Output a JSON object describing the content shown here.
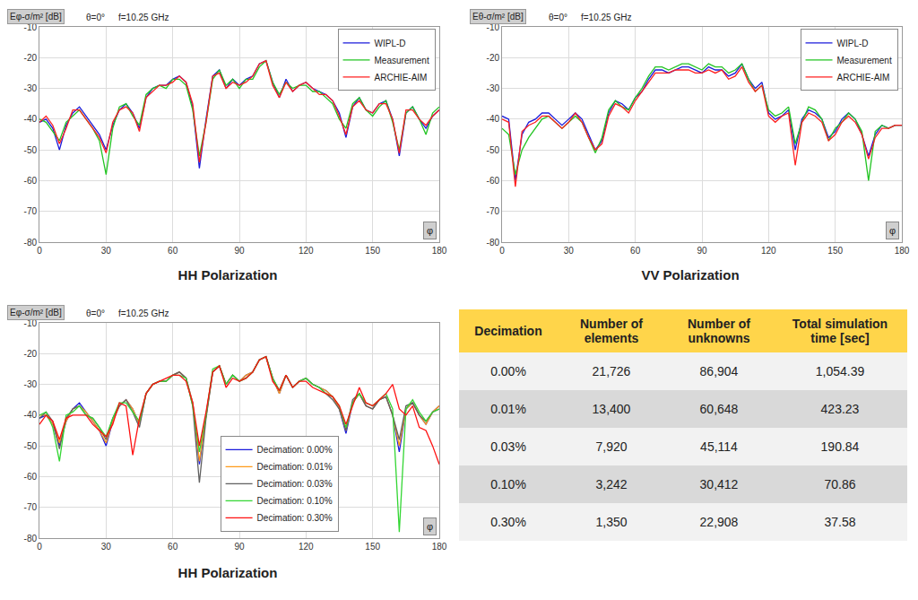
{
  "chart_data": [
    {
      "type": "line",
      "title": "HH Polarization",
      "y_label": "Eφ-σ/m² [dB]",
      "x_label": "φ",
      "annotations": [
        "θ=0°",
        "f=10.25 GHz"
      ],
      "xlim": [
        0,
        180
      ],
      "xticks": [
        0,
        30,
        60,
        90,
        120,
        150,
        180
      ],
      "ylim": [
        -80,
        -10
      ],
      "yticks": [
        -80,
        -70,
        -60,
        -50,
        -40,
        -30,
        -20,
        -10
      ],
      "grid": true,
      "legend": "upper right",
      "x": [
        0,
        3,
        6,
        9,
        12,
        15,
        18,
        21,
        24,
        27,
        30,
        33,
        36,
        39,
        42,
        45,
        48,
        51,
        54,
        57,
        60,
        63,
        66,
        69,
        72,
        75,
        78,
        81,
        84,
        87,
        90,
        93,
        96,
        99,
        102,
        105,
        108,
        111,
        114,
        117,
        120,
        123,
        126,
        129,
        132,
        135,
        138,
        141,
        144,
        147,
        150,
        153,
        156,
        159,
        162,
        165,
        168,
        171,
        174,
        177,
        180
      ],
      "series": [
        {
          "name": "WIPL-D",
          "color": "#1a1adb",
          "values": [
            -41,
            -40,
            -43,
            -50,
            -42,
            -38,
            -36,
            -39,
            -42,
            -45,
            -50,
            -42,
            -37,
            -35,
            -38,
            -43,
            -33,
            -30,
            -29,
            -29,
            -27,
            -26,
            -28,
            -36,
            -56,
            -40,
            -26,
            -24,
            -30,
            -27,
            -29,
            -27,
            -26,
            -22,
            -21,
            -28,
            -33,
            -27,
            -31,
            -29,
            -28,
            -30,
            -31,
            -32,
            -34,
            -38,
            -46,
            -36,
            -33,
            -37,
            -38,
            -35,
            -34,
            -40,
            -52,
            -38,
            -36,
            -40,
            -43,
            -39,
            -37
          ]
        },
        {
          "name": "Measurement",
          "color": "#22c422",
          "values": [
            -40,
            -41,
            -44,
            -47,
            -41,
            -39,
            -37,
            -40,
            -43,
            -47,
            -58,
            -43,
            -36,
            -35,
            -39,
            -42,
            -32,
            -30,
            -29,
            -30,
            -27,
            -27,
            -29,
            -37,
            -52,
            -41,
            -27,
            -24,
            -29,
            -27,
            -30,
            -27,
            -27,
            -23,
            -21,
            -28,
            -32,
            -28,
            -30,
            -29,
            -29,
            -31,
            -31,
            -33,
            -35,
            -40,
            -43,
            -35,
            -33,
            -37,
            -39,
            -36,
            -34,
            -41,
            -50,
            -38,
            -36,
            -40,
            -45,
            -38,
            -36
          ]
        },
        {
          "name": "ARCHIE-AIM",
          "color": "#ff2020",
          "values": [
            -41,
            -39,
            -42,
            -48,
            -43,
            -37,
            -37,
            -40,
            -43,
            -46,
            -51,
            -41,
            -37,
            -36,
            -38,
            -44,
            -33,
            -31,
            -29,
            -29,
            -28,
            -26,
            -28,
            -35,
            -54,
            -41,
            -26,
            -25,
            -30,
            -28,
            -29,
            -28,
            -26,
            -22,
            -21,
            -29,
            -33,
            -28,
            -31,
            -29,
            -28,
            -30,
            -32,
            -32,
            -34,
            -39,
            -45,
            -36,
            -34,
            -37,
            -38,
            -35,
            -35,
            -40,
            -51,
            -37,
            -37,
            -40,
            -42,
            -39,
            -37
          ]
        }
      ]
    },
    {
      "type": "line",
      "title": "VV Polarization",
      "y_label": "Eθ-σ/m² [dB]",
      "x_label": "φ",
      "annotations": [
        "θ=0°",
        "f=10.25 GHz"
      ],
      "xlim": [
        0,
        180
      ],
      "xticks": [
        0,
        30,
        60,
        90,
        120,
        150,
        180
      ],
      "ylim": [
        -80,
        -10
      ],
      "yticks": [
        -80,
        -70,
        -60,
        -50,
        -40,
        -30,
        -20,
        -10
      ],
      "grid": true,
      "legend": "upper right",
      "x": [
        0,
        3,
        6,
        9,
        12,
        15,
        18,
        21,
        24,
        27,
        30,
        33,
        36,
        39,
        42,
        45,
        48,
        51,
        54,
        57,
        60,
        63,
        66,
        69,
        72,
        75,
        78,
        81,
        84,
        87,
        90,
        93,
        96,
        99,
        102,
        105,
        108,
        111,
        114,
        117,
        120,
        123,
        126,
        129,
        132,
        135,
        138,
        141,
        144,
        147,
        150,
        153,
        156,
        159,
        162,
        165,
        168,
        171,
        174,
        177,
        180
      ],
      "series": [
        {
          "name": "WIPL-D",
          "color": "#1a1adb",
          "values": [
            -39,
            -40,
            -60,
            -45,
            -41,
            -40,
            -38,
            -38,
            -40,
            -42,
            -40,
            -38,
            -40,
            -45,
            -50,
            -47,
            -38,
            -34,
            -35,
            -37,
            -33,
            -31,
            -27,
            -24,
            -24,
            -25,
            -24,
            -23,
            -23,
            -24,
            -25,
            -23,
            -24,
            -24,
            -26,
            -25,
            -22,
            -27,
            -30,
            -28,
            -38,
            -40,
            -39,
            -37,
            -50,
            -40,
            -37,
            -38,
            -40,
            -46,
            -44,
            -40,
            -38,
            -40,
            -45,
            -52,
            -45,
            -42,
            -43,
            -42,
            -42
          ]
        },
        {
          "name": "Measurement",
          "color": "#22c422",
          "values": [
            -43,
            -45,
            -58,
            -50,
            -46,
            -43,
            -40,
            -39,
            -41,
            -43,
            -41,
            -39,
            -41,
            -46,
            -51,
            -46,
            -37,
            -34,
            -36,
            -37,
            -33,
            -30,
            -26,
            -23,
            -23,
            -24,
            -23,
            -22,
            -22,
            -23,
            -24,
            -22,
            -23,
            -23,
            -25,
            -24,
            -22,
            -27,
            -31,
            -29,
            -37,
            -39,
            -38,
            -36,
            -48,
            -41,
            -36,
            -37,
            -40,
            -47,
            -43,
            -41,
            -38,
            -40,
            -44,
            -60,
            -44,
            -42,
            -43,
            -42,
            -42
          ]
        },
        {
          "name": "ARCHIE-AIM",
          "color": "#ff2020",
          "values": [
            -40,
            -41,
            -62,
            -44,
            -42,
            -41,
            -39,
            -39,
            -41,
            -43,
            -41,
            -38,
            -41,
            -46,
            -50,
            -48,
            -39,
            -35,
            -36,
            -38,
            -34,
            -31,
            -28,
            -25,
            -25,
            -25,
            -24,
            -24,
            -24,
            -25,
            -25,
            -24,
            -25,
            -24,
            -27,
            -26,
            -23,
            -28,
            -31,
            -29,
            -39,
            -41,
            -39,
            -38,
            -55,
            -41,
            -38,
            -39,
            -41,
            -47,
            -45,
            -41,
            -39,
            -41,
            -45,
            -53,
            -46,
            -43,
            -43,
            -42,
            -42
          ]
        }
      ]
    },
    {
      "type": "line",
      "title": "HH Polarization",
      "y_label": "Eφ-σ/m² [dB]",
      "x_label": "φ",
      "annotations": [
        "θ=0°",
        "f=10.25 GHz"
      ],
      "xlim": [
        0,
        180
      ],
      "xticks": [
        0,
        30,
        60,
        90,
        120,
        150,
        180
      ],
      "ylim": [
        -80,
        -10
      ],
      "yticks": [
        -80,
        -70,
        -60,
        -50,
        -40,
        -30,
        -20,
        -10
      ],
      "grid": true,
      "legend": "lower center",
      "x": [
        0,
        3,
        6,
        9,
        12,
        15,
        18,
        21,
        24,
        27,
        30,
        33,
        36,
        39,
        42,
        45,
        48,
        51,
        54,
        57,
        60,
        63,
        66,
        69,
        72,
        75,
        78,
        81,
        84,
        87,
        90,
        93,
        96,
        99,
        102,
        105,
        108,
        111,
        114,
        117,
        120,
        123,
        126,
        129,
        132,
        135,
        138,
        141,
        144,
        147,
        150,
        153,
        156,
        159,
        162,
        165,
        168,
        171,
        174,
        177,
        180
      ],
      "series": [
        {
          "name": "Decimation: 0.00%",
          "color": "#1a1adb",
          "values": [
            -41,
            -40,
            -43,
            -50,
            -42,
            -38,
            -36,
            -39,
            -42,
            -45,
            -50,
            -42,
            -37,
            -35,
            -38,
            -43,
            -33,
            -30,
            -29,
            -29,
            -27,
            -26,
            -28,
            -36,
            -56,
            -40,
            -26,
            -24,
            -30,
            -27,
            -29,
            -27,
            -26,
            -22,
            -21,
            -28,
            -33,
            -27,
            -31,
            -29,
            -28,
            -30,
            -31,
            -32,
            -34,
            -38,
            -46,
            -36,
            -33,
            -37,
            -38,
            -35,
            -34,
            -40,
            -52,
            -38,
            -36,
            -40,
            -43,
            -39,
            -37
          ]
        },
        {
          "name": "Decimation: 0.01%",
          "color": "#ff9a1a",
          "values": [
            -40,
            -40,
            -43,
            -49,
            -42,
            -38,
            -37,
            -39,
            -42,
            -45,
            -49,
            -42,
            -37,
            -35,
            -38,
            -43,
            -33,
            -30,
            -29,
            -29,
            -27,
            -26,
            -28,
            -36,
            -55,
            -40,
            -26,
            -24,
            -30,
            -27,
            -29,
            -27,
            -26,
            -22,
            -21,
            -28,
            -33,
            -27,
            -31,
            -29,
            -28,
            -30,
            -31,
            -32,
            -34,
            -38,
            -45,
            -36,
            -33,
            -37,
            -38,
            -35,
            -34,
            -40,
            -50,
            -38,
            -36,
            -40,
            -43,
            -39,
            -37
          ]
        },
        {
          "name": "Decimation: 0.03%",
          "color": "#606060",
          "values": [
            -41,
            -39,
            -42,
            -51,
            -41,
            -38,
            -37,
            -40,
            -41,
            -44,
            -48,
            -41,
            -37,
            -35,
            -39,
            -44,
            -33,
            -30,
            -29,
            -29,
            -27,
            -26,
            -28,
            -37,
            -62,
            -41,
            -26,
            -24,
            -30,
            -27,
            -29,
            -28,
            -26,
            -22,
            -21,
            -28,
            -32,
            -27,
            -31,
            -29,
            -28,
            -30,
            -31,
            -33,
            -35,
            -38,
            -45,
            -35,
            -33,
            -37,
            -38,
            -35,
            -34,
            -40,
            -48,
            -37,
            -36,
            -40,
            -42,
            -39,
            -38
          ]
        },
        {
          "name": "Decimation: 0.10%",
          "color": "#33d633",
          "values": [
            -40,
            -39,
            -44,
            -55,
            -40,
            -39,
            -37,
            -40,
            -41,
            -44,
            -47,
            -41,
            -36,
            -36,
            -39,
            -42,
            -33,
            -30,
            -29,
            -29,
            -27,
            -27,
            -28,
            -37,
            -52,
            -40,
            -25,
            -24,
            -30,
            -27,
            -29,
            -28,
            -26,
            -22,
            -21,
            -28,
            -32,
            -27,
            -31,
            -29,
            -28,
            -30,
            -31,
            -33,
            -34,
            -37,
            -44,
            -36,
            -33,
            -36,
            -37,
            -35,
            -33,
            -38,
            -78,
            -38,
            -35,
            -39,
            -42,
            -39,
            -38
          ]
        },
        {
          "name": "Decimation: 0.30%",
          "color": "#ff1010",
          "values": [
            -43,
            -40,
            -42,
            -48,
            -41,
            -40,
            -40,
            -40,
            -43,
            -45,
            -47,
            -43,
            -36,
            -37,
            -53,
            -41,
            -33,
            -30,
            -29,
            -28,
            -27,
            -27,
            -29,
            -36,
            -50,
            -39,
            -26,
            -24,
            -31,
            -28,
            -29,
            -28,
            -26,
            -22,
            -21,
            -29,
            -32,
            -27,
            -31,
            -29,
            -29,
            -31,
            -32,
            -33,
            -34,
            -37,
            -43,
            -37,
            -31,
            -36,
            -37,
            -35,
            -33,
            -30,
            -38,
            -40,
            -37,
            -44,
            -45,
            -50,
            -56
          ]
        }
      ]
    }
  ],
  "table": {
    "header": [
      "Decimation",
      "Number of elements",
      "Number of unknowns",
      "Total simulation time [sec]"
    ],
    "rows": [
      [
        "0.00%",
        "21,726",
        "86,904",
        "1,054.39"
      ],
      [
        "0.01%",
        "13,400",
        "60,648",
        "423.23"
      ],
      [
        "0.03%",
        "7,920",
        "45,114",
        "190.84"
      ],
      [
        "0.10%",
        "3,242",
        "30,412",
        "70.86"
      ],
      [
        "0.30%",
        "1,350",
        "22,908",
        "37.58"
      ]
    ]
  }
}
